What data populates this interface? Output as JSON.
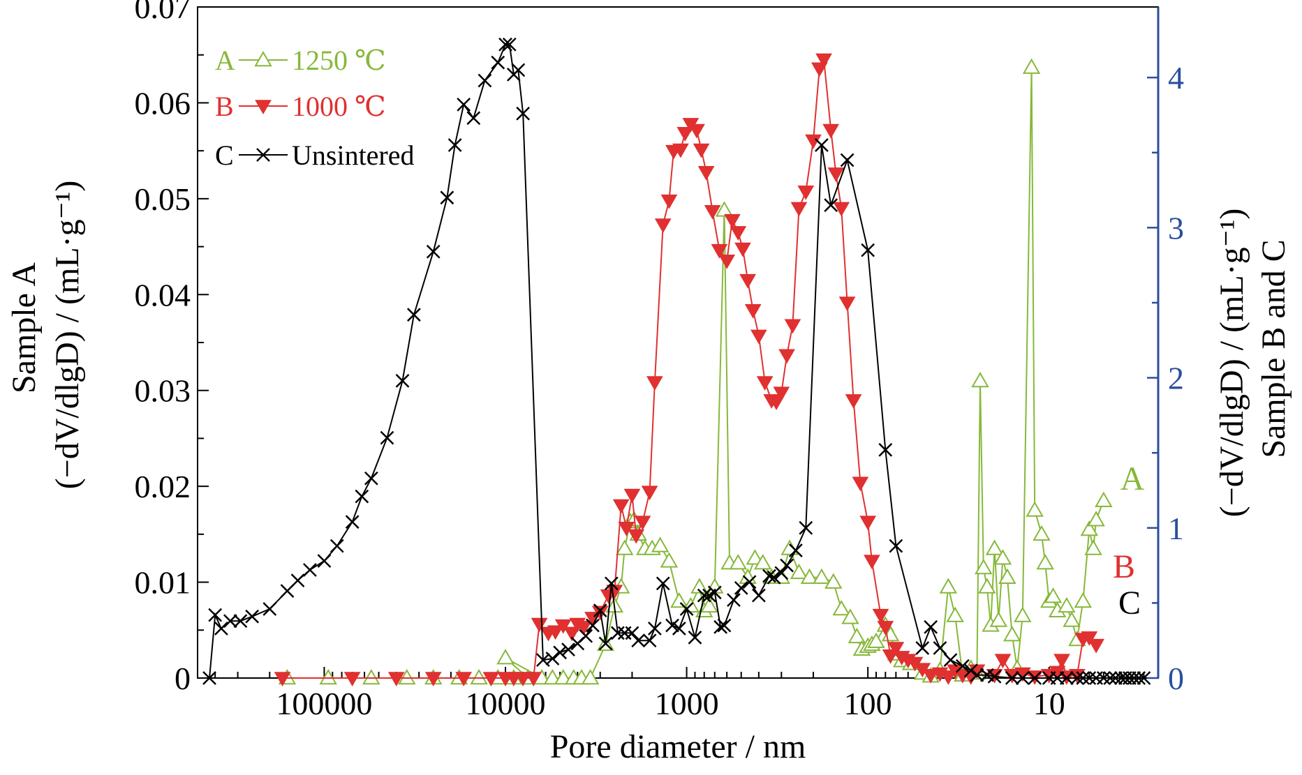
{
  "chart_data": {
    "type": "line",
    "xlabel": "Pore diameter / nm",
    "ylabel_left_line1": "Sample A",
    "ylabel_left_line2": "(−dV/dlgD) / (mL·g⁻¹)",
    "ylabel_right_line1": "(−dV/dlgD) / (mL·g⁻¹)",
    "ylabel_right_line2": "Sample B and C",
    "x_scale": "log",
    "x_reversed": true,
    "xlim": [
      500000,
      2.5
    ],
    "xticks": [
      100000,
      10000,
      1000,
      100,
      10
    ],
    "xtick_labels": [
      "100000",
      "10000",
      "1000",
      "100",
      "10"
    ],
    "ylim_left": [
      0,
      0.07
    ],
    "yticks_left": [
      0,
      0.01,
      0.02,
      0.03,
      0.04,
      0.05,
      0.06,
      0.07
    ],
    "ytick_labels_left": [
      "0",
      "0.01",
      "0.02",
      "0.03",
      "0.04",
      "0.05",
      "0.06",
      "0.07"
    ],
    "ylim_right": [
      0,
      4.47
    ],
    "yticks_right": [
      0,
      1,
      2,
      3,
      4
    ],
    "ytick_labels_right": [
      "0",
      "1",
      "2",
      "3",
      "4"
    ],
    "axis_colors": {
      "left": "#000000",
      "right": "#2a4f9c",
      "bottom": "#000000"
    },
    "legend_position": "top-left",
    "grid": false,
    "series": [
      {
        "name": "1250 ℃",
        "legend_label": "A",
        "curve_tag": "A",
        "axis": "left",
        "color": "#86b83a",
        "marker": "open-triangle-up",
        "points": [
          [
            160000,
            0
          ],
          [
            95000,
            0
          ],
          [
            55000,
            0
          ],
          [
            35000,
            0
          ],
          [
            25000,
            0
          ],
          [
            18000,
            0
          ],
          [
            14000,
            0
          ],
          [
            11000,
            0
          ],
          [
            9000,
            0
          ],
          [
            7500,
            0
          ],
          [
            10000,
            0.0021
          ],
          [
            6300,
            0
          ],
          [
            5500,
            0
          ],
          [
            4800,
            0
          ],
          [
            4200,
            0
          ],
          [
            3800,
            0
          ],
          [
            3400,
            0
          ],
          [
            2800,
            0.0035
          ],
          [
            2500,
            0.0075
          ],
          [
            2300,
            0.0095
          ],
          [
            2200,
            0.0135
          ],
          [
            2050,
            0.0163
          ],
          [
            1950,
            0.0165
          ],
          [
            1850,
            0.015
          ],
          [
            1700,
            0.0135
          ],
          [
            1550,
            0.0135
          ],
          [
            1400,
            0.0138
          ],
          [
            1250,
            0.0122
          ],
          [
            1100,
            0.008
          ],
          [
            950,
            0.0075
          ],
          [
            850,
            0.0095
          ],
          [
            800,
            0.007
          ],
          [
            750,
            0.0075
          ],
          [
            700,
            0.0095
          ],
          [
            620,
            0.0488
          ],
          [
            580,
            0.012
          ],
          [
            520,
            0.012
          ],
          [
            460,
            0.0105
          ],
          [
            420,
            0.0125
          ],
          [
            380,
            0.012
          ],
          [
            340,
            0.0105
          ],
          [
            300,
            0.0105
          ],
          [
            270,
            0.0135
          ],
          [
            240,
            0.011
          ],
          [
            210,
            0.0105
          ],
          [
            180,
            0.0105
          ],
          [
            155,
            0.01
          ],
          [
            140,
            0.0072
          ],
          [
            125,
            0.0063
          ],
          [
            115,
            0.0043
          ],
          [
            108,
            0.003
          ],
          [
            100,
            0.0033
          ],
          [
            95,
            0.0035
          ],
          [
            90,
            0.0038
          ],
          [
            80,
            0.0055
          ],
          [
            75,
            0.0045
          ],
          [
            70,
            0.0025
          ],
          [
            65,
            0.0018
          ],
          [
            58,
            0.0015
          ],
          [
            50,
            0.0005
          ],
          [
            45,
            0.0002
          ],
          [
            40,
            0.0008
          ],
          [
            36,
            0.0095
          ],
          [
            33,
            0.0065
          ],
          [
            30,
            0.0003
          ],
          [
            27,
            0.001
          ],
          [
            25,
            0.0005
          ],
          [
            24,
            0.031
          ],
          [
            23,
            0.0115
          ],
          [
            22,
            0.0095
          ],
          [
            21,
            0.0055
          ],
          [
            20,
            0.0135
          ],
          [
            19,
            0.006
          ],
          [
            18,
            0.0125
          ],
          [
            17,
            0.0105
          ],
          [
            16,
            0.0045
          ],
          [
            15,
            0.001
          ],
          [
            14,
            0.0065
          ],
          [
            12.5,
            0.0637
          ],
          [
            12,
            0.0175
          ],
          [
            11,
            0.015
          ],
          [
            10.5,
            0.012
          ],
          [
            10,
            0.008
          ],
          [
            9.5,
            0.0085
          ],
          [
            9,
            0.007
          ],
          [
            8,
            0.0075
          ],
          [
            7.5,
            0.006
          ],
          [
            7,
            0.004
          ],
          [
            6.5,
            0.008
          ],
          [
            6,
            0.0155
          ],
          [
            5.7,
            0.0135
          ],
          [
            5.5,
            0.0165
          ],
          [
            5,
            0.0185
          ]
        ]
      },
      {
        "name": "1000 ℃",
        "legend_label": "B",
        "curve_tag": "B",
        "axis": "right",
        "color": "#e03030",
        "marker": "filled-triangle-down",
        "points": [
          [
            170000,
            0
          ],
          [
            70000,
            0
          ],
          [
            40000,
            0
          ],
          [
            25000,
            0
          ],
          [
            17000,
            0
          ],
          [
            12000,
            0
          ],
          [
            10000,
            0
          ],
          [
            9000,
            0
          ],
          [
            8000,
            0
          ],
          [
            7000,
            0
          ],
          [
            6500,
            0.36
          ],
          [
            5800,
            0.3
          ],
          [
            5300,
            0.31
          ],
          [
            4800,
            0.35
          ],
          [
            4300,
            0.3
          ],
          [
            4000,
            0.36
          ],
          [
            3700,
            0.34
          ],
          [
            3300,
            0.4
          ],
          [
            3000,
            0.44
          ],
          [
            2700,
            0.55
          ],
          [
            2500,
            0.58
          ],
          [
            2300,
            1.15
          ],
          [
            2150,
            1.0
          ],
          [
            2000,
            1.22
          ],
          [
            1900,
            0.95
          ],
          [
            1750,
            1.04
          ],
          [
            1600,
            1.24
          ],
          [
            1500,
            1.97
          ],
          [
            1350,
            3.02
          ],
          [
            1250,
            3.18
          ],
          [
            1180,
            3.51
          ],
          [
            1080,
            3.52
          ],
          [
            1020,
            3.63
          ],
          [
            950,
            3.69
          ],
          [
            880,
            3.65
          ],
          [
            830,
            3.52
          ],
          [
            780,
            3.37
          ],
          [
            720,
            3.11
          ],
          [
            660,
            2.85
          ],
          [
            600,
            2.78
          ],
          [
            560,
            3.05
          ],
          [
            520,
            2.97
          ],
          [
            490,
            2.86
          ],
          [
            460,
            2.65
          ],
          [
            430,
            2.45
          ],
          [
            400,
            2.28
          ],
          [
            370,
            1.97
          ],
          [
            340,
            1.85
          ],
          [
            320,
            1.84
          ],
          [
            300,
            1.9
          ],
          [
            280,
            2.15
          ],
          [
            260,
            2.35
          ],
          [
            240,
            3.13
          ],
          [
            220,
            3.24
          ],
          [
            200,
            3.58
          ],
          [
            185,
            4.06
          ],
          [
            175,
            4.12
          ],
          [
            160,
            3.65
          ],
          [
            150,
            3.36
          ],
          [
            140,
            3.13
          ],
          [
            130,
            2.5
          ],
          [
            120,
            1.85
          ],
          [
            110,
            1.3
          ],
          [
            100,
            1.04
          ],
          [
            95,
            0.78
          ],
          [
            85,
            0.42
          ],
          [
            80,
            0.34
          ],
          [
            75,
            0.15
          ],
          [
            70,
            0.2
          ],
          [
            65,
            0.14
          ],
          [
            60,
            0.12
          ],
          [
            55,
            0.1
          ],
          [
            50,
            0.06
          ],
          [
            45,
            0.02
          ],
          [
            40,
            0.03
          ],
          [
            36,
            0.01
          ],
          [
            33,
            0.05
          ],
          [
            30,
            0.02
          ],
          [
            27,
            0.01
          ],
          [
            25,
            0.05
          ],
          [
            20,
            0.02
          ],
          [
            18,
            0.12
          ],
          [
            16,
            0.02
          ],
          [
            14,
            0.03
          ],
          [
            12,
            0.01
          ],
          [
            10,
            0.02
          ],
          [
            9,
            0.04
          ],
          [
            8.5,
            0.12
          ],
          [
            8,
            0.01
          ],
          [
            7,
            0.02
          ],
          [
            6.5,
            0.26
          ],
          [
            6,
            0.27
          ],
          [
            5.5,
            0.22
          ]
        ]
      },
      {
        "name": "Unsintered",
        "legend_label": "C",
        "curve_tag": "C",
        "axis": "right",
        "color": "#000000",
        "marker": "cross",
        "points": [
          [
            430000,
            0
          ],
          [
            400000,
            0.42
          ],
          [
            370000,
            0.33
          ],
          [
            330000,
            0.38
          ],
          [
            290000,
            0.38
          ],
          [
            250000,
            0.41
          ],
          [
            200000,
            0.46
          ],
          [
            160000,
            0.58
          ],
          [
            140000,
            0.65
          ],
          [
            120000,
            0.72
          ],
          [
            100000,
            0.78
          ],
          [
            85000,
            0.88
          ],
          [
            70000,
            1.04
          ],
          [
            62000,
            1.21
          ],
          [
            55000,
            1.33
          ],
          [
            45000,
            1.6
          ],
          [
            37000,
            1.98
          ],
          [
            32000,
            2.42
          ],
          [
            25000,
            2.84
          ],
          [
            21000,
            3.2
          ],
          [
            19000,
            3.55
          ],
          [
            17000,
            3.82
          ],
          [
            15000,
            3.73
          ],
          [
            13000,
            3.98
          ],
          [
            11000,
            4.1
          ],
          [
            10000,
            4.22
          ],
          [
            9500,
            4.22
          ],
          [
            9000,
            4.02
          ],
          [
            8500,
            4.05
          ],
          [
            8000,
            3.76
          ],
          [
            6200,
            0.12
          ],
          [
            5500,
            0.13
          ],
          [
            5000,
            0.17
          ],
          [
            4500,
            0.19
          ],
          [
            4000,
            0.23
          ],
          [
            3600,
            0.28
          ],
          [
            3300,
            0.35
          ],
          [
            3000,
            0.45
          ],
          [
            2800,
            0.23
          ],
          [
            2600,
            0.63
          ],
          [
            2400,
            0.3
          ],
          [
            2200,
            0.3
          ],
          [
            2000,
            0.3
          ],
          [
            1850,
            0.25
          ],
          [
            1600,
            0.25
          ],
          [
            1500,
            0.33
          ],
          [
            1350,
            0.63
          ],
          [
            1200,
            0.35
          ],
          [
            1100,
            0.33
          ],
          [
            1000,
            0.46
          ],
          [
            900,
            0.27
          ],
          [
            800,
            0.55
          ],
          [
            750,
            0.55
          ],
          [
            700,
            0.57
          ],
          [
            650,
            0.34
          ],
          [
            620,
            0.35
          ],
          [
            550,
            0.52
          ],
          [
            500,
            0.6
          ],
          [
            450,
            0.64
          ],
          [
            400,
            0.55
          ],
          [
            350,
            0.68
          ],
          [
            330,
            0.67
          ],
          [
            300,
            0.7
          ],
          [
            280,
            0.75
          ],
          [
            250,
            0.85
          ],
          [
            220,
            1.0
          ],
          [
            180,
            3.55
          ],
          [
            160,
            3.15
          ],
          [
            130,
            3.45
          ],
          [
            100,
            2.85
          ],
          [
            80,
            1.52
          ],
          [
            70,
            0.88
          ],
          [
            50,
            0.2
          ],
          [
            45,
            0.34
          ],
          [
            40,
            0.2
          ],
          [
            35,
            0.12
          ],
          [
            30,
            0.08
          ],
          [
            27,
            0.05
          ],
          [
            25,
            0.02
          ],
          [
            22,
            0.02
          ],
          [
            20,
            0.01
          ],
          [
            16,
            0
          ],
          [
            14,
            0
          ],
          [
            12,
            0
          ],
          [
            10,
            0
          ],
          [
            9,
            0
          ],
          [
            8,
            0
          ],
          [
            7,
            0
          ],
          [
            6.5,
            0
          ],
          [
            6,
            0
          ],
          [
            5.5,
            0
          ],
          [
            5,
            0
          ],
          [
            4.6,
            0
          ],
          [
            4.3,
            0
          ],
          [
            4,
            0
          ],
          [
            3.8,
            0
          ],
          [
            3.6,
            0
          ],
          [
            3.4,
            0
          ],
          [
            3.2,
            0
          ],
          [
            3,
            0
          ]
        ]
      }
    ]
  }
}
